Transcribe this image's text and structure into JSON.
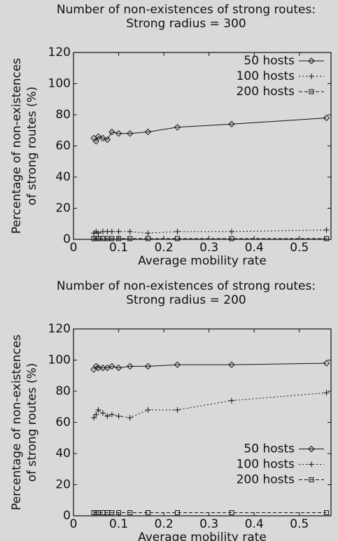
{
  "chart_data": [
    {
      "type": "line",
      "title": "Number of non-existences of strong routes:",
      "subtitle": "Strong radius = 300",
      "xlabel": "Average mobility rate",
      "ylabel": [
        "Percentage of non-existences",
        "of strong routes (%)"
      ],
      "x": [
        0.045,
        0.05,
        0.055,
        0.065,
        0.075,
        0.085,
        0.1,
        0.125,
        0.165,
        0.23,
        0.35,
        0.56
      ],
      "xlim": [
        0,
        0.57
      ],
      "xticks": [
        0,
        0.1,
        0.2,
        0.3,
        0.4,
        0.5
      ],
      "ylim": [
        0,
        120
      ],
      "yticks": [
        0,
        20,
        40,
        60,
        80,
        100,
        120
      ],
      "legend": "upper right",
      "series": [
        {
          "name": "50 hosts",
          "color": "#111111",
          "marker": "diamond",
          "dash": "solid",
          "values": [
            65,
            63,
            66,
            65,
            64,
            69,
            68,
            68,
            69,
            72,
            74,
            78
          ]
        },
        {
          "name": "100 hosts",
          "color": "#111111",
          "marker": "plus",
          "dash": "dotted",
          "values": [
            4,
            5,
            4,
            5,
            5,
            5,
            5,
            5,
            4,
            5,
            5,
            6
          ]
        },
        {
          "name": "200 hosts",
          "color": "#111111",
          "marker": "square",
          "dash": "dashed",
          "values": [
            0.5,
            0.5,
            0.5,
            0.5,
            0.5,
            0.5,
            0.5,
            0.5,
            0.5,
            0.5,
            0.5,
            0.5
          ]
        }
      ]
    },
    {
      "type": "line",
      "title": "Number of non-existences of strong routes:",
      "subtitle": "Strong radius = 200",
      "xlabel": "Average mobility rate",
      "ylabel": [
        "Percentage of non-existences",
        "of strong routes (%)"
      ],
      "x": [
        0.045,
        0.05,
        0.055,
        0.065,
        0.075,
        0.085,
        0.1,
        0.125,
        0.165,
        0.23,
        0.35,
        0.56
      ],
      "xlim": [
        0,
        0.57
      ],
      "xticks": [
        0,
        0.1,
        0.2,
        0.3,
        0.4,
        0.5
      ],
      "ylim": [
        0,
        120
      ],
      "yticks": [
        0,
        20,
        40,
        60,
        80,
        100,
        120
      ],
      "legend": "center right",
      "series": [
        {
          "name": "50 hosts",
          "color": "#111111",
          "marker": "diamond",
          "dash": "solid",
          "values": [
            94,
            96,
            95,
            95,
            95,
            96,
            95,
            96,
            96,
            97,
            97,
            98
          ]
        },
        {
          "name": "100 hosts",
          "color": "#111111",
          "marker": "plus",
          "dash": "dotted",
          "values": [
            63,
            65,
            68,
            66,
            64,
            65,
            64,
            63,
            68,
            68,
            74,
            79
          ]
        },
        {
          "name": "200 hosts",
          "color": "#111111",
          "marker": "square",
          "dash": "dashed",
          "values": [
            2,
            2,
            2,
            2,
            2,
            2,
            2,
            2,
            2,
            2,
            2,
            2
          ]
        }
      ]
    }
  ]
}
